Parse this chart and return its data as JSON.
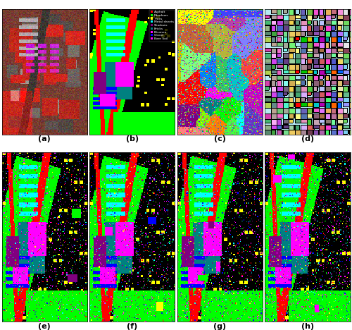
{
  "fig_width": 5.0,
  "fig_height": 4.68,
  "dpi": 100,
  "labels": [
    "(a)",
    "(b)",
    "(c)",
    "(d)",
    "(e)",
    "(f)",
    "(g)",
    "(h)"
  ],
  "label_fontsize": 8,
  "label_fontweight": "bold",
  "legend_labels": [
    "Asphalt",
    "Meadows",
    "Trees",
    "Metal sheets",
    "Shadows",
    "Bricks",
    "Bitumen",
    "Gravel",
    "Bare Soil"
  ],
  "legend_colors": [
    "#ff0000",
    "#00ff00",
    "#ffff00",
    "#00ffff",
    "#800080",
    "#008080",
    "#ff00ff",
    "#0000ff",
    "#ff00ff"
  ],
  "background": "#ffffff"
}
